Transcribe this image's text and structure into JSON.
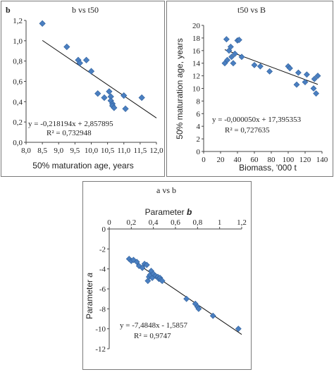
{
  "chart_data": [
    {
      "type": "scatter",
      "title": "b vs t50",
      "ylabel_corner": "b",
      "xlabel": "50% maturation age, years",
      "ylabel": "",
      "xlim": [
        8.0,
        12.0
      ],
      "ylim": [
        0.0,
        1.2
      ],
      "xticks": [
        "8,0",
        "8,5",
        "9,0",
        "9,5",
        "10,0",
        "10,5",
        "11,0",
        "11,5",
        "12,0"
      ],
      "yticks": [
        "0,0",
        "0,2",
        "0,4",
        "0,6",
        "0,8",
        "1,0",
        "1,2"
      ],
      "equation": "y = -0,218194x + 2,857895",
      "r2": "R² = 0,732948",
      "trend": {
        "slope": -0.218194,
        "intercept": 2.857895,
        "x_from": 8.5,
        "x_to": 12.0
      },
      "point_color": "#4a7fc1",
      "x": [
        8.5,
        9.25,
        9.6,
        9.65,
        9.85,
        10.0,
        10.2,
        10.4,
        10.55,
        10.6,
        10.6,
        10.65,
        10.65,
        10.7,
        11.0,
        11.05,
        11.55
      ],
      "y": [
        1.17,
        0.94,
        0.81,
        0.78,
        0.81,
        0.7,
        0.48,
        0.44,
        0.5,
        0.45,
        0.41,
        0.38,
        0.36,
        0.34,
        0.46,
        0.33,
        0.44
      ]
    },
    {
      "type": "scatter",
      "title": "t50 vs B",
      "xlabel": "Biomass, '000 t",
      "ylabel": "50% maturation age, years",
      "xlim": [
        0,
        140
      ],
      "ylim": [
        0,
        20
      ],
      "xticks": [
        "0",
        "20",
        "40",
        "60",
        "80",
        "100",
        "120",
        "140"
      ],
      "yticks": [
        "0",
        "2",
        "4",
        "6",
        "8",
        "10",
        "12",
        "14",
        "16",
        "18",
        "20"
      ],
      "equation": "y = -0,000050x + 17,395353",
      "r2": "R² = 0,727635",
      "trend": {
        "slope": -0.05,
        "intercept": 17.395353,
        "x_from": 25,
        "x_to": 135
      },
      "point_color": "#4a7fc1",
      "x": [
        25,
        27,
        28,
        30,
        32,
        33,
        35,
        37,
        40,
        42,
        45,
        60,
        67,
        78,
        100,
        102,
        110,
        112,
        120,
        122,
        130,
        131,
        133,
        135
      ],
      "y": [
        14.0,
        17.8,
        14.5,
        16.0,
        16.6,
        15.0,
        14.0,
        15.5,
        17.6,
        17.7,
        15.0,
        13.7,
        13.5,
        12.7,
        13.5,
        13.2,
        10.6,
        12.5,
        11.0,
        12.2,
        10.0,
        11.5,
        9.2,
        12.0
      ]
    },
    {
      "type": "scatter",
      "title": "a vs b",
      "subtitle_prefix": "Parameter",
      "subtitle_var": "b",
      "ylabel_prefix": "Parameter",
      "ylabel_var": "a",
      "xlim": [
        0,
        1.2
      ],
      "ylim": [
        -12,
        0
      ],
      "xticks": [
        "0",
        "0,2",
        "0,4",
        "0,6",
        "0,8",
        "1",
        "1,2"
      ],
      "yticks": [
        "0",
        "-2",
        "-4",
        "-6",
        "-8",
        "-10",
        "-12"
      ],
      "equation": "y = -7,4848x - 1,5857",
      "r2": "R² = 0,9747",
      "trend": {
        "slope": -7.4848,
        "intercept": -1.5857,
        "x_from": 0.18,
        "x_to": 1.2
      },
      "point_color": "#4a7fc1",
      "x": [
        0.18,
        0.2,
        0.22,
        0.25,
        0.27,
        0.3,
        0.32,
        0.34,
        0.35,
        0.36,
        0.37,
        0.38,
        0.39,
        0.4,
        0.42,
        0.44,
        0.45,
        0.46,
        0.47,
        0.48,
        0.7,
        0.78,
        0.8,
        0.81,
        0.94,
        1.17
      ],
      "y": [
        -3.0,
        -3.2,
        -3.1,
        -3.3,
        -3.7,
        -3.9,
        -3.5,
        -3.6,
        -5.2,
        -4.8,
        -4.6,
        -4.2,
        -4.9,
        -4.5,
        -4.7,
        -4.8,
        -5.0,
        -4.9,
        -5.1,
        -5.2,
        -7.0,
        -7.5,
        -7.8,
        -8.0,
        -8.7,
        -10.0
      ]
    }
  ]
}
